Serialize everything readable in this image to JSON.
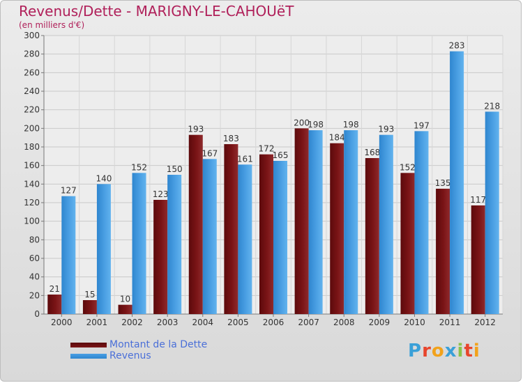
{
  "title": "Revenus/Dette - MARIGNY-LE-CAHOUëT",
  "subtitle": "(en milliers d'€)",
  "logo_text": "Proxiti",
  "colors": {
    "dette": "#7a1416",
    "revenus": "#4a9fe3",
    "title": "#b0205a",
    "legend_text": "#4a6fd8"
  },
  "chart_data": {
    "type": "bar",
    "title": "Revenus/Dette - MARIGNY-LE-CAHOUëT",
    "subtitle": "(en milliers d'€)",
    "categories": [
      "2000",
      "2001",
      "2002",
      "2003",
      "2004",
      "2005",
      "2006",
      "2007",
      "2008",
      "2009",
      "2010",
      "2011",
      "2012"
    ],
    "series": [
      {
        "name": "Montant de la Dette",
        "values": [
          21,
          15,
          10,
          123,
          193,
          183,
          172,
          200,
          184,
          168,
          152,
          135,
          117
        ]
      },
      {
        "name": "Revenus",
        "values": [
          127,
          140,
          152,
          150,
          167,
          161,
          165,
          198,
          198,
          193,
          197,
          283,
          218
        ]
      }
    ],
    "ylim": [
      0,
      300
    ],
    "yticks": [
      0,
      20,
      40,
      60,
      80,
      100,
      120,
      140,
      160,
      180,
      200,
      220,
      240,
      260,
      280,
      300
    ],
    "grid": true,
    "legend": "bottom-left"
  }
}
